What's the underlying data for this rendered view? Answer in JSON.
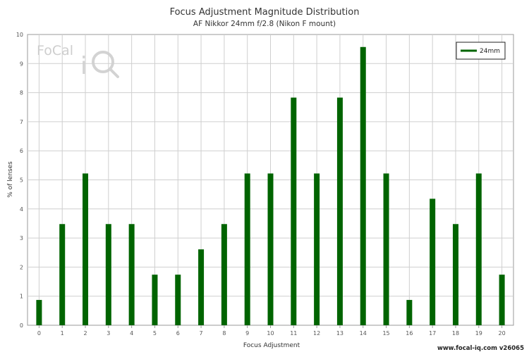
{
  "chart_data": {
    "type": "bar",
    "title": "Focus Adjustment Magnitude Distribution",
    "subtitle": "AF Nikkor 24mm f/2.8 (Nikon F mount)",
    "xlabel": "Focus Adjustment",
    "ylabel": "% of lenses",
    "categories": [
      "0",
      "1",
      "2",
      "3",
      "4",
      "5",
      "6",
      "7",
      "8",
      "9",
      "10",
      "11",
      "12",
      "13",
      "14",
      "15",
      "16",
      "17",
      "18",
      "19",
      "20"
    ],
    "series": [
      {
        "name": "24mm",
        "color": "#006400",
        "values": [
          0.87,
          3.48,
          5.22,
          3.48,
          3.48,
          1.74,
          1.74,
          2.61,
          3.48,
          5.22,
          5.22,
          7.83,
          5.22,
          7.83,
          9.57,
          5.22,
          0.87,
          4.35,
          3.48,
          5.22,
          1.74
        ]
      }
    ],
    "yticks": [
      "0",
      "1",
      "2",
      "3",
      "4",
      "5",
      "6",
      "7",
      "8",
      "9",
      "10"
    ],
    "ylim": [
      0,
      10
    ],
    "grid": true,
    "legend_position": "top-right"
  },
  "watermark": {
    "logo_text": "FoCal iQ"
  },
  "credit": "www.focal-iq.com  v26065"
}
